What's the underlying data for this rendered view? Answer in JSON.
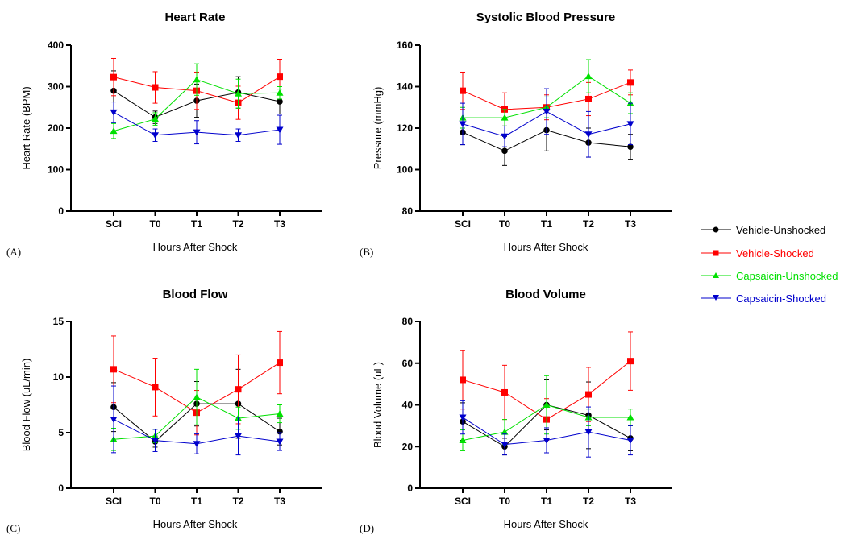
{
  "legend": [
    {
      "name": "Vehicle-Unshocked",
      "color": "#000000",
      "marker": "circle"
    },
    {
      "name": "Vehicle-Shocked",
      "color": "#ff0000",
      "marker": "square"
    },
    {
      "name": "Capsaicin-Unshocked",
      "color": "#00e000",
      "marker": "triangle-up"
    },
    {
      "name": "Capsaicin-Shocked",
      "color": "#0000cc",
      "marker": "triangle-down"
    }
  ],
  "chart_data": [
    {
      "type": "line",
      "panel_letter": "(A)",
      "title": "Heart Rate",
      "xlabel": "Hours After Shock",
      "ylabel": "Heart Rate (BPM)",
      "categories": [
        "SCI",
        "T0",
        "T1",
        "T2",
        "T3"
      ],
      "ylim": [
        0,
        400
      ],
      "yticks": [
        0,
        100,
        200,
        300,
        400
      ],
      "series": [
        {
          "name": "Vehicle-Unshocked",
          "values": [
            290,
            226,
            266,
            286,
            264
          ],
          "errors": [
            48,
            15,
            40,
            38,
            30
          ]
        },
        {
          "name": "Vehicle-Shocked",
          "values": [
            323,
            298,
            290,
            261,
            324
          ],
          "errors": [
            45,
            38,
            45,
            40,
            42
          ]
        },
        {
          "name": "Capsaicin-Unshocked",
          "values": [
            193,
            222,
            317,
            283,
            285
          ],
          "errors": [
            18,
            15,
            38,
            35,
            15
          ]
        },
        {
          "name": "Capsaicin-Shocked",
          "values": [
            238,
            183,
            190,
            183,
            196
          ],
          "errors": [
            25,
            15,
            28,
            15,
            35
          ]
        }
      ]
    },
    {
      "type": "line",
      "panel_letter": "(B)",
      "title": "Systolic Blood Pressure",
      "xlabel": "Hours After Shock",
      "ylabel": "Pressure (mmHg)",
      "categories": [
        "SCI",
        "T0",
        "T1",
        "T2",
        "T3"
      ],
      "ylim": [
        80,
        160
      ],
      "yticks": [
        80,
        100,
        120,
        140,
        160
      ],
      "series": [
        {
          "name": "Vehicle-Unshocked",
          "values": [
            118,
            109,
            119,
            113,
            111
          ],
          "errors": [
            6,
            7,
            10,
            7,
            6
          ]
        },
        {
          "name": "Vehicle-Shocked",
          "values": [
            138,
            129,
            130,
            134,
            142
          ],
          "errors": [
            9,
            8,
            6,
            8,
            6
          ]
        },
        {
          "name": "Capsaicin-Unshocked",
          "values": [
            125,
            125,
            130,
            145,
            132
          ],
          "errors": [
            5,
            4,
            5,
            8,
            5
          ]
        },
        {
          "name": "Capsaicin-Shocked",
          "values": [
            122,
            116,
            128,
            117,
            122
          ],
          "errors": [
            10,
            5,
            11,
            11,
            10
          ]
        }
      ]
    },
    {
      "type": "line",
      "panel_letter": "(C)",
      "title": "Blood Flow",
      "xlabel": "Hours After Shock",
      "ylabel": "Blood Flow (uL/min)",
      "categories": [
        "SCI",
        "T0",
        "T1",
        "T2",
        "T3"
      ],
      "ylim": [
        0,
        15
      ],
      "yticks": [
        0,
        5,
        10,
        15
      ],
      "series": [
        {
          "name": "Vehicle-Unshocked",
          "values": [
            7.3,
            4.2,
            7.6,
            7.6,
            5.1
          ],
          "errors": [
            2.2,
            0.5,
            2.0,
            3.1,
            1.2
          ]
        },
        {
          "name": "Vehicle-Shocked",
          "values": [
            10.7,
            9.1,
            6.8,
            8.9,
            11.3
          ],
          "errors": [
            3.0,
            2.6,
            2.0,
            3.1,
            2.8
          ]
        },
        {
          "name": "Capsaicin-Unshocked",
          "values": [
            4.4,
            4.7,
            8.2,
            6.3,
            6.7
          ],
          "errors": [
            1.0,
            0.6,
            2.5,
            1.0,
            0.8
          ]
        },
        {
          "name": "Capsaicin-Shocked",
          "values": [
            6.2,
            4.3,
            4.0,
            4.7,
            4.2
          ],
          "errors": [
            3.0,
            1.0,
            0.9,
            1.7,
            0.8
          ]
        }
      ]
    },
    {
      "type": "line",
      "panel_letter": "(D)",
      "title": "Blood Volume",
      "xlabel": "Hours After Shock",
      "ylabel": "Blood Volume (uL)",
      "categories": [
        "SCI",
        "T0",
        "T1",
        "T2",
        "T3"
      ],
      "ylim": [
        0,
        80
      ],
      "yticks": [
        0,
        20,
        40,
        60,
        80
      ],
      "series": [
        {
          "name": "Vehicle-Unshocked",
          "values": [
            32,
            20,
            40,
            35,
            24
          ],
          "errors": [
            9,
            4,
            12,
            16,
            6
          ]
        },
        {
          "name": "Vehicle-Shocked",
          "values": [
            52,
            46,
            33,
            45,
            61
          ],
          "errors": [
            14,
            13,
            10,
            13,
            14
          ]
        },
        {
          "name": "Capsaicin-Unshocked",
          "values": [
            23,
            27,
            40,
            34,
            34
          ],
          "errors": [
            5,
            6,
            14,
            4,
            4
          ]
        },
        {
          "name": "Capsaicin-Shocked",
          "values": [
            34,
            21,
            23,
            27,
            23
          ],
          "errors": [
            8,
            5,
            6,
            12,
            7
          ]
        }
      ]
    }
  ]
}
